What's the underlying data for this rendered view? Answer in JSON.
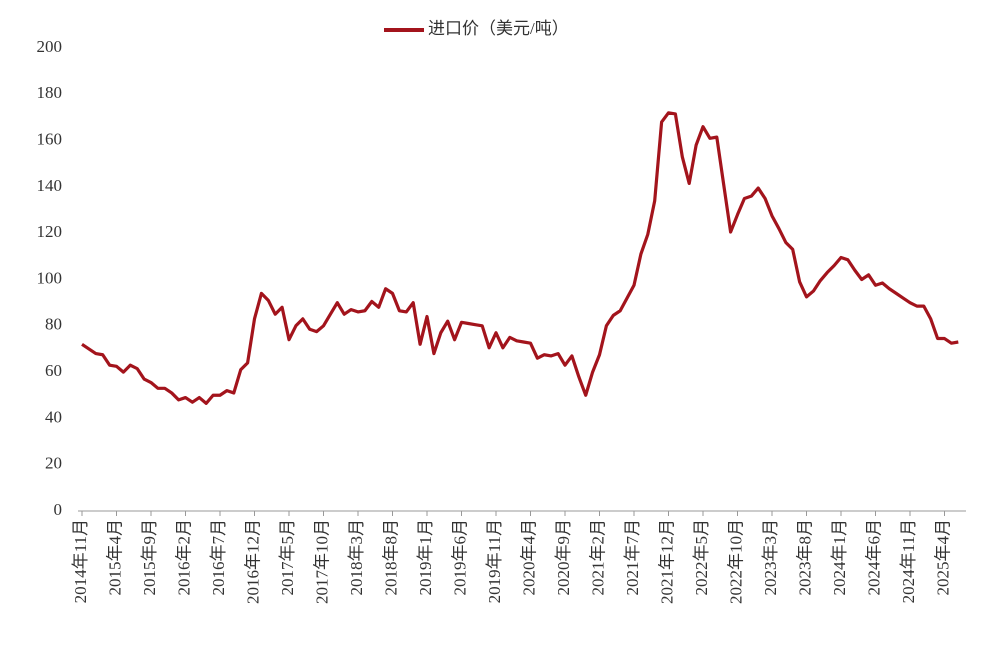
{
  "chart_data": {
    "type": "line",
    "series": [
      {
        "name": "进口价（美元/吨）",
        "color": "#a3141c",
        "values": [
          72,
          70,
          68,
          67.5,
          63,
          62.5,
          60,
          63,
          61.5,
          57,
          55.5,
          53,
          53,
          51,
          48,
          49,
          47,
          49,
          46.5,
          50,
          50,
          52,
          51,
          61,
          64,
          83,
          94,
          91,
          85,
          88,
          74,
          80,
          83,
          78.5,
          77.5,
          80,
          85,
          90,
          85,
          87,
          86,
          86.5,
          90.5,
          88,
          96,
          94,
          86.5,
          86,
          90,
          72,
          84,
          68,
          77,
          82,
          74,
          81.5,
          81,
          80.5,
          80,
          70.5,
          77,
          70.5,
          75,
          73.5,
          73,
          72.5,
          66,
          67.5,
          67,
          68,
          63,
          67,
          58,
          50,
          60,
          67.5,
          80,
          84.5,
          86.5,
          92,
          97.5,
          111,
          119.5,
          134,
          168,
          172,
          171.5,
          153,
          141.5,
          158,
          166,
          161,
          161.5,
          141,
          120.5,
          128,
          135,
          136,
          139.5,
          135,
          127.5,
          122,
          116,
          113,
          99,
          92.5,
          95,
          99.5,
          103,
          106,
          109.5,
          108.5,
          104,
          100,
          102,
          97.5,
          98.5,
          96,
          94,
          92,
          90,
          88.5,
          88.5,
          83,
          74.5,
          74.5,
          72.5,
          73
        ]
      }
    ],
    "categories": [
      "2014年11月",
      null,
      null,
      null,
      null,
      "2015年4月",
      null,
      null,
      null,
      null,
      "2015年9月",
      null,
      null,
      null,
      null,
      "2016年2月",
      null,
      null,
      null,
      null,
      "2016年7月",
      null,
      null,
      null,
      null,
      "2016年12月",
      null,
      null,
      null,
      null,
      "2017年5月",
      null,
      null,
      null,
      null,
      "2017年10月",
      null,
      null,
      null,
      null,
      "2018年3月",
      null,
      null,
      null,
      null,
      "2018年8月",
      null,
      null,
      null,
      null,
      "2019年1月",
      null,
      null,
      null,
      null,
      "2019年6月",
      null,
      null,
      null,
      null,
      "2019年11月",
      null,
      null,
      null,
      null,
      "2020年4月",
      null,
      null,
      null,
      null,
      "2020年9月",
      null,
      null,
      null,
      null,
      "2021年2月",
      null,
      null,
      null,
      null,
      "2021年7月",
      null,
      null,
      null,
      null,
      "2021年12月",
      null,
      null,
      null,
      null,
      "2022年5月",
      null,
      null,
      null,
      null,
      "2022年10月",
      null,
      null,
      null,
      null,
      "2023年3月",
      null,
      null,
      null,
      null,
      "2023年8月",
      null,
      null,
      null,
      null,
      "2024年1月",
      null,
      null,
      null,
      null,
      "2024年6月",
      null,
      null,
      null,
      null,
      "2024年11月",
      null,
      null,
      null,
      null,
      "2025年4月",
      null,
      null
    ],
    "ylim": [
      0,
      200
    ],
    "yticks": [
      0,
      20,
      40,
      60,
      80,
      100,
      120,
      140,
      160,
      180,
      200
    ],
    "grid": false,
    "legend": "top"
  }
}
